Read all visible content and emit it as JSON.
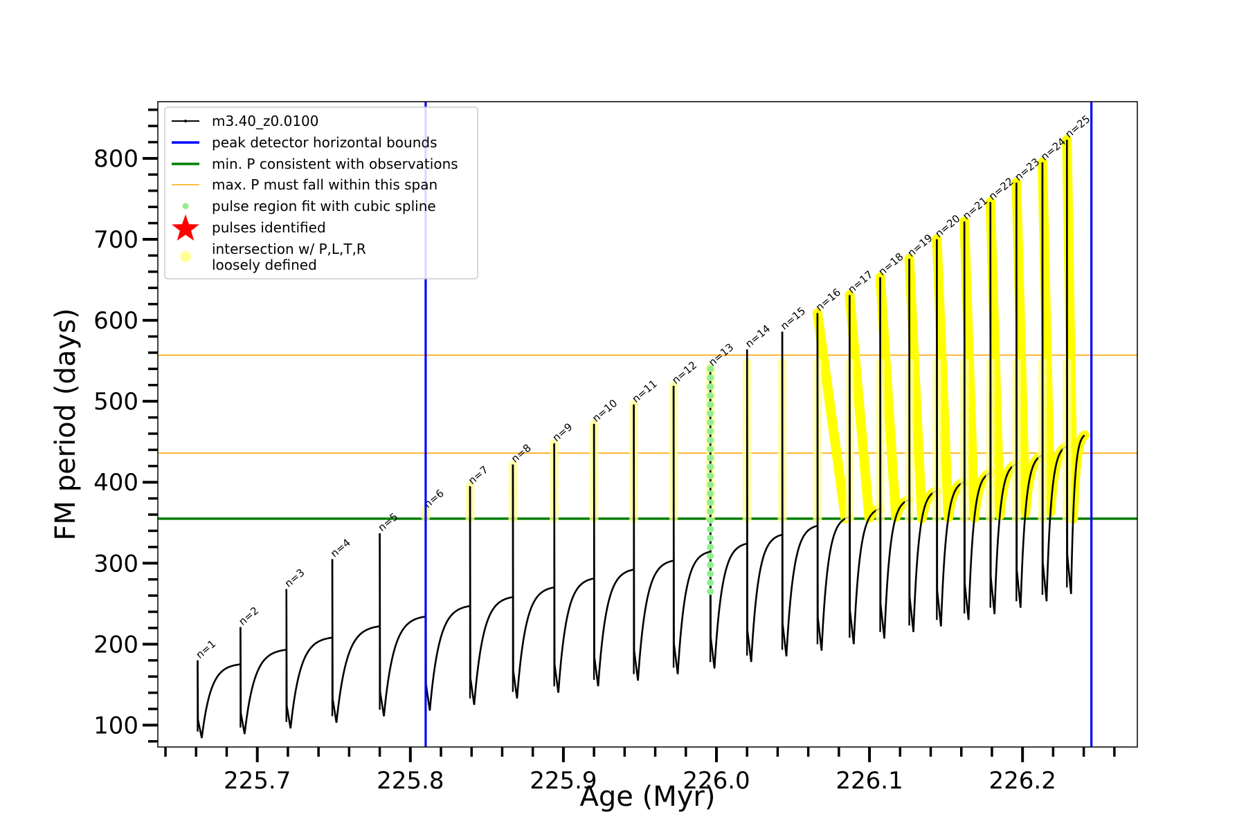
{
  "chart_data": {
    "type": "line",
    "xlabel": "Age (Myr)",
    "ylabel": "FM period (days)",
    "xlim": [
      225.635,
      226.275
    ],
    "ylim": [
      73,
      870
    ],
    "x_ticks": [
      225.7,
      225.8,
      225.9,
      226.0,
      226.1,
      226.2
    ],
    "x_tick_labels": [
      "225.7",
      "225.8",
      "225.9",
      "226.0",
      "226.1",
      "226.2"
    ],
    "y_ticks": [
      100,
      200,
      300,
      400,
      500,
      600,
      700,
      800
    ],
    "y_tick_labels": [
      "100",
      "200",
      "300",
      "400",
      "500",
      "600",
      "700",
      "800"
    ],
    "legend_position": "upper-left",
    "legend": [
      {
        "key": "track",
        "label": "m3.40_z0.0100",
        "color": "#000000",
        "marker": "line-dot"
      },
      {
        "key": "bounds",
        "label": "peak detector horizontal bounds",
        "color": "#0000ff",
        "marker": "line"
      },
      {
        "key": "minp",
        "label": "min. P consistent with observations",
        "color": "#007f00",
        "marker": "line"
      },
      {
        "key": "maxp",
        "label": "max. P must fall within this span",
        "color": "#ffa500",
        "marker": "thin-line"
      },
      {
        "key": "spline",
        "label": "pulse region fit with cubic spline",
        "color": "#90ee90",
        "marker": "dot"
      },
      {
        "key": "pulses",
        "label": "pulses identified",
        "color": "#ff0000",
        "marker": "star"
      },
      {
        "key": "intersection",
        "label": "intersection w/ P,L,T,R",
        "label2": "loosely defined",
        "color": "#ffff99",
        "marker": "circle"
      }
    ],
    "vertical_bounds": [
      225.81,
      226.245
    ],
    "min_p": 355,
    "max_p_span": [
      436,
      557
    ],
    "pulses": [
      {
        "n": "n=1",
        "x": 225.661,
        "peak": 180,
        "min": 84,
        "end": 175
      },
      {
        "n": "n=2",
        "x": 225.689,
        "peak": 221,
        "min": 89,
        "end": 193
      },
      {
        "n": "n=3",
        "x": 225.719,
        "peak": 268,
        "min": 96,
        "end": 208
      },
      {
        "n": "n=4",
        "x": 225.749,
        "peak": 305,
        "min": 103,
        "end": 222
      },
      {
        "n": "n=5",
        "x": 225.78,
        "peak": 337,
        "min": 111,
        "end": 234
      },
      {
        "n": "n=6",
        "x": 225.81,
        "peak": 366,
        "min": 118,
        "end": 247
      },
      {
        "n": "n=7",
        "x": 225.839,
        "peak": 395,
        "min": 125,
        "end": 258
      },
      {
        "n": "n=8",
        "x": 225.867,
        "peak": 422,
        "min": 133,
        "end": 270
      },
      {
        "n": "n=9",
        "x": 225.894,
        "peak": 448,
        "min": 140,
        "end": 281
      },
      {
        "n": "n=10",
        "x": 225.92,
        "peak": 472,
        "min": 148,
        "end": 292
      },
      {
        "n": "n=11",
        "x": 225.946,
        "peak": 496,
        "min": 155,
        "end": 303
      },
      {
        "n": "n=12",
        "x": 225.972,
        "peak": 519,
        "min": 163,
        "end": 314
      },
      {
        "n": "n=13",
        "x": 225.996,
        "peak": 541,
        "min": 170,
        "end": 324
      },
      {
        "n": "n=14",
        "x": 226.02,
        "peak": 564,
        "min": 178,
        "end": 335
      },
      {
        "n": "n=15",
        "x": 226.043,
        "peak": 586,
        "min": 185,
        "end": 346
      },
      {
        "n": "n=16",
        "x": 226.066,
        "peak": 609,
        "min": 192,
        "end": 357
      },
      {
        "n": "n=17",
        "x": 226.087,
        "peak": 631,
        "min": 200,
        "end": 367
      },
      {
        "n": "n=18",
        "x": 226.107,
        "peak": 653,
        "min": 207,
        "end": 378
      },
      {
        "n": "n=19",
        "x": 226.126,
        "peak": 676,
        "min": 215,
        "end": 389
      },
      {
        "n": "n=20",
        "x": 226.144,
        "peak": 700,
        "min": 222,
        "end": 400
      },
      {
        "n": "n=21",
        "x": 226.162,
        "peak": 722,
        "min": 230,
        "end": 411
      },
      {
        "n": "n=22",
        "x": 226.179,
        "peak": 746,
        "min": 237,
        "end": 422
      },
      {
        "n": "n=23",
        "x": 226.196,
        "peak": 770,
        "min": 245,
        "end": 433
      },
      {
        "n": "n=24",
        "x": 226.213,
        "peak": 795,
        "min": 253,
        "end": 444
      },
      {
        "n": "n=25",
        "x": 226.229,
        "peak": 823,
        "min": 262,
        "end": 458
      }
    ],
    "spline_pulse": "n=13"
  }
}
